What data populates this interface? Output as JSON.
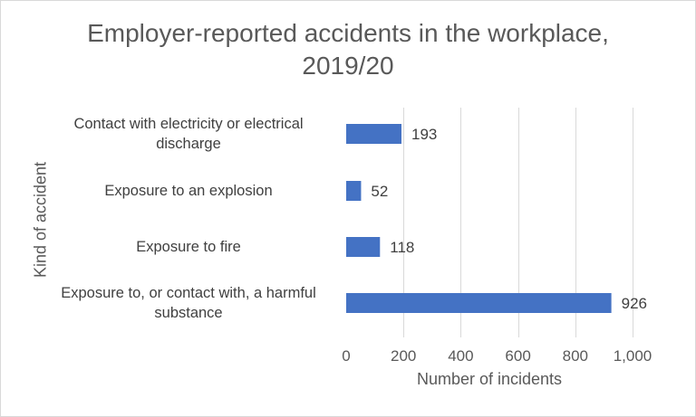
{
  "chart_data": {
    "type": "bar",
    "orientation": "horizontal",
    "title_lines": [
      "Employer-reported accidents in the workplace,",
      "2019/20"
    ],
    "xlabel": "Number of incidents",
    "ylabel": "Kind of accident",
    "categories": [
      [
        "Contact with electricity or electrical",
        "discharge"
      ],
      [
        "Exposure to an explosion"
      ],
      [
        "Exposure to fire"
      ],
      [
        "Exposure to, or contact with, a harmful",
        "substance"
      ]
    ],
    "values": [
      193,
      52,
      118,
      926
    ],
    "value_labels": [
      "193",
      "52",
      "118",
      "926"
    ],
    "x_ticks": [
      0,
      200,
      400,
      600,
      800,
      1000
    ],
    "x_tick_labels": [
      "0",
      "200",
      "400",
      "600",
      "800",
      "1,000"
    ],
    "xlim": [
      0,
      1000
    ],
    "grid": true,
    "bar_color": "#4472c4",
    "grid_color": "#d9d9d9",
    "text_color": "#595959"
  }
}
